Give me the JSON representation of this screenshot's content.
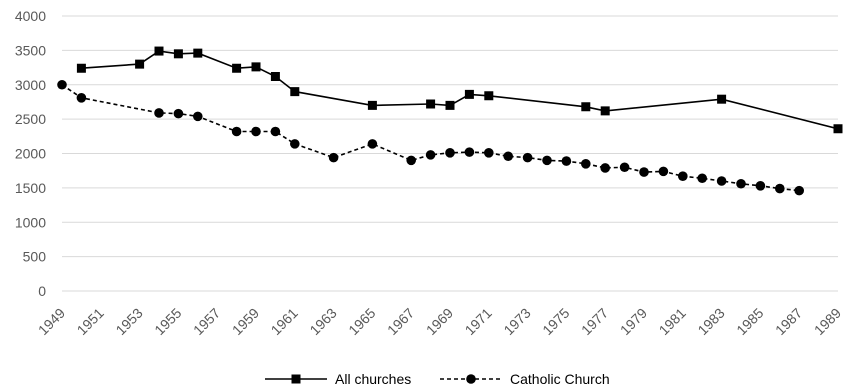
{
  "chart_data": {
    "type": "line",
    "title": "",
    "xlabel": "",
    "ylabel": "",
    "xlim": [
      1949,
      1989
    ],
    "ylim": [
      0,
      4000
    ],
    "y_ticks": [
      0,
      500,
      1000,
      1500,
      2000,
      2500,
      3000,
      3500,
      4000
    ],
    "x_tick_labels": [
      "1949",
      "1951",
      "1953",
      "1955",
      "1957",
      "1959",
      "1961",
      "1963",
      "1965",
      "1967",
      "1969",
      "1971",
      "1973",
      "1975",
      "1977",
      "1979",
      "1981",
      "1983",
      "1985",
      "1987",
      "1989"
    ],
    "grid": "horizontal",
    "legend_position": "bottom",
    "series": [
      {
        "name": "All churches",
        "color": "#000000",
        "line": "solid",
        "marker": "square",
        "points": [
          [
            1950,
            3240
          ],
          [
            1953,
            3300
          ],
          [
            1954,
            3490
          ],
          [
            1955,
            3450
          ],
          [
            1956,
            3460
          ],
          [
            1958,
            3240
          ],
          [
            1959,
            3260
          ],
          [
            1960,
            3120
          ],
          [
            1961,
            2900
          ],
          [
            1965,
            2700
          ],
          [
            1968,
            2720
          ],
          [
            1969,
            2700
          ],
          [
            1970,
            2860
          ],
          [
            1971,
            2840
          ],
          [
            1976,
            2680
          ],
          [
            1977,
            2620
          ],
          [
            1983,
            2790
          ],
          [
            1989,
            2360
          ]
        ]
      },
      {
        "name": "Catholic Church",
        "color": "#000000",
        "line": "dashed",
        "marker": "circle",
        "points": [
          [
            1949,
            3000
          ],
          [
            1950,
            2810
          ],
          [
            1954,
            2590
          ],
          [
            1955,
            2580
          ],
          [
            1956,
            2540
          ],
          [
            1958,
            2320
          ],
          [
            1959,
            2320
          ],
          [
            1960,
            2320
          ],
          [
            1961,
            2140
          ],
          [
            1963,
            1940
          ],
          [
            1965,
            2140
          ],
          [
            1967,
            1900
          ],
          [
            1968,
            1980
          ],
          [
            1969,
            2010
          ],
          [
            1970,
            2020
          ],
          [
            1971,
            2010
          ],
          [
            1972,
            1960
          ],
          [
            1973,
            1940
          ],
          [
            1974,
            1900
          ],
          [
            1975,
            1890
          ],
          [
            1976,
            1850
          ],
          [
            1977,
            1790
          ],
          [
            1978,
            1800
          ],
          [
            1979,
            1730
          ],
          [
            1980,
            1740
          ],
          [
            1981,
            1670
          ],
          [
            1982,
            1640
          ],
          [
            1983,
            1600
          ],
          [
            1984,
            1560
          ],
          [
            1985,
            1530
          ],
          [
            1986,
            1490
          ],
          [
            1987,
            1460
          ]
        ]
      }
    ]
  }
}
